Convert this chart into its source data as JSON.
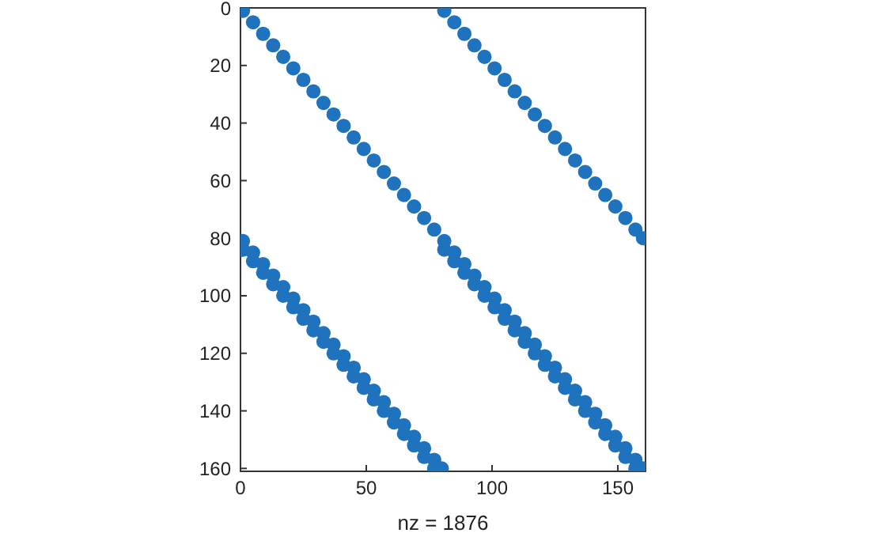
{
  "chart_data": {
    "type": "scatter",
    "xlabel": "nz = 1876",
    "xlim": [
      0,
      161
    ],
    "xticks": [
      0,
      50,
      100,
      150
    ],
    "ylim": [
      161,
      0
    ],
    "yticks": [
      0,
      20,
      40,
      60,
      80,
      100,
      120,
      140,
      160
    ],
    "grid": false,
    "marker": "circle",
    "series": [
      {
        "color": "#1f72bd",
        "x": [
          1,
          5,
          9,
          13,
          17,
          21,
          25,
          29,
          33,
          37,
          41,
          45,
          49,
          53,
          57,
          61,
          65,
          69,
          73,
          77
        ],
        "values": [
          1,
          5,
          9,
          13,
          17,
          21,
          25,
          29,
          33,
          37,
          41,
          45,
          49,
          53,
          57,
          61,
          65,
          69,
          73,
          77
        ]
      },
      {
        "color": "#1f72bd",
        "x": [
          81,
          85,
          89,
          93,
          97,
          101,
          105,
          109,
          113,
          117,
          121,
          125,
          129,
          133,
          137,
          141,
          145,
          149,
          153,
          157,
          160
        ],
        "values": [
          1,
          5,
          9,
          13,
          17,
          21,
          25,
          29,
          33,
          37,
          41,
          45,
          49,
          53,
          57,
          61,
          65,
          69,
          73,
          77,
          80
        ]
      },
      {
        "color": "#1f72bd",
        "x": [
          1,
          5,
          9,
          13,
          17,
          21,
          25,
          29,
          33,
          37,
          41,
          45,
          49,
          53,
          57,
          61,
          65,
          69,
          73,
          77,
          80
        ],
        "values": [
          81,
          85,
          89,
          93,
          97,
          101,
          105,
          109,
          113,
          117,
          121,
          125,
          129,
          133,
          137,
          141,
          145,
          149,
          153,
          157,
          160
        ]
      },
      {
        "color": "#1f72bd",
        "x": [
          1,
          5,
          9,
          13,
          17,
          21,
          25,
          29,
          33,
          37,
          41,
          45,
          49,
          53,
          57,
          61,
          65,
          69,
          73,
          77
        ],
        "values": [
          84,
          88,
          92,
          96,
          100,
          104,
          108,
          112,
          116,
          120,
          124,
          128,
          132,
          136,
          140,
          144,
          148,
          152,
          156,
          160
        ]
      },
      {
        "color": "#1f72bd",
        "x": [
          81,
          85,
          89,
          93,
          97,
          101,
          105,
          109,
          113,
          117,
          121,
          125,
          129,
          133,
          137,
          141,
          145,
          149,
          153,
          157,
          160
        ],
        "values": [
          81,
          85,
          89,
          93,
          97,
          101,
          105,
          109,
          113,
          117,
          121,
          125,
          129,
          133,
          137,
          141,
          145,
          149,
          153,
          157,
          160
        ]
      },
      {
        "color": "#1f72bd",
        "x": [
          81,
          85,
          89,
          93,
          97,
          101,
          105,
          109,
          113,
          117,
          121,
          125,
          129,
          133,
          137,
          141,
          145,
          149,
          153,
          157
        ],
        "values": [
          84,
          88,
          92,
          96,
          100,
          104,
          108,
          112,
          116,
          120,
          124,
          128,
          132,
          136,
          140,
          144,
          148,
          152,
          156,
          160
        ]
      }
    ]
  }
}
